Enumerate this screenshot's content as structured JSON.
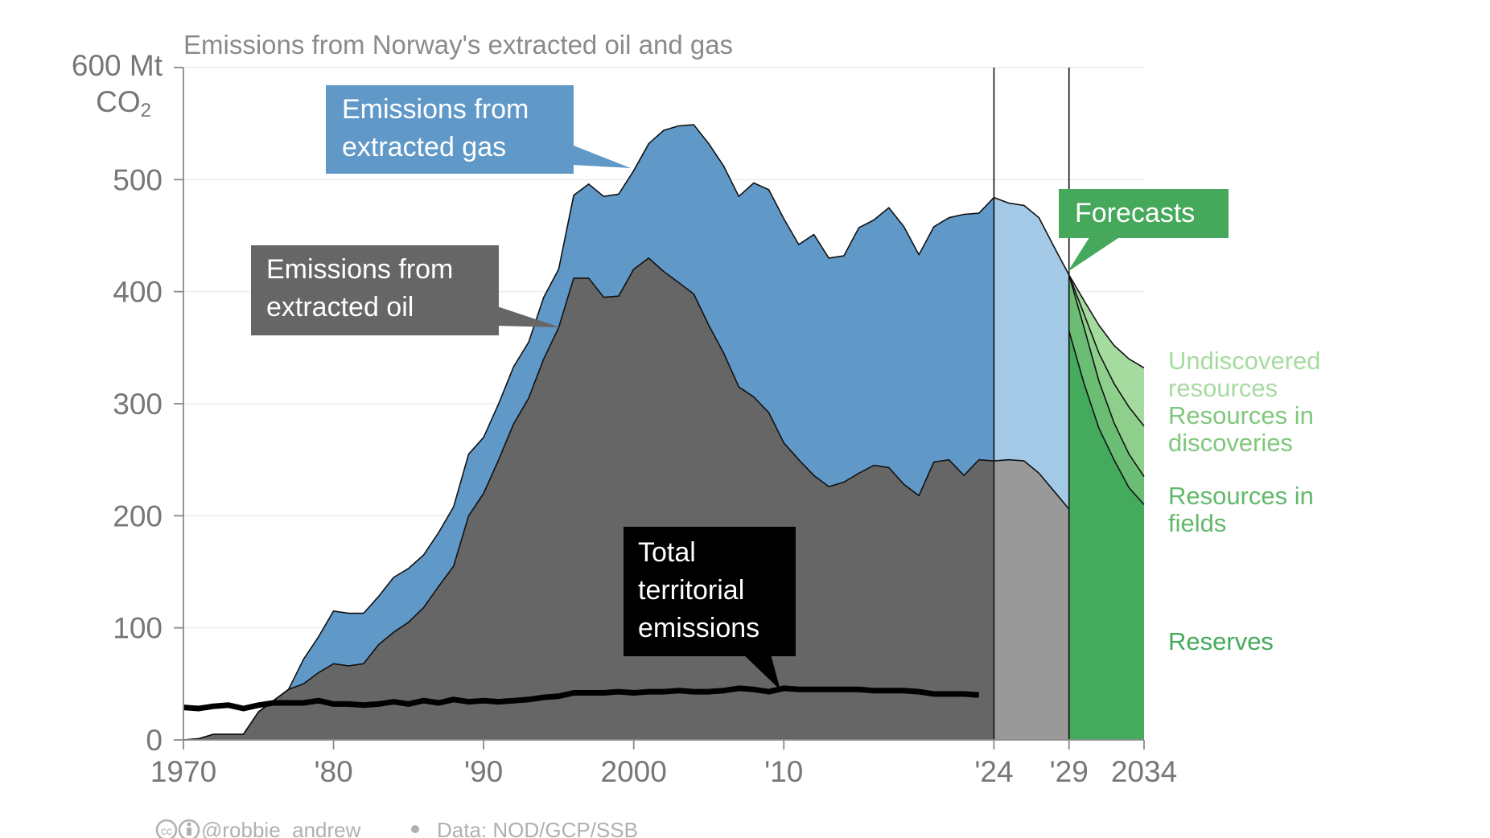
{
  "title": "Emissions from Norway's extracted oil and gas",
  "y_unit_top": "600 Mt",
  "y_unit_bottom": "CO",
  "y_unit_sub": "2",
  "callouts": {
    "gas": [
      "Emissions from",
      "extracted gas"
    ],
    "oil": [
      "Emissions from",
      "extracted oil"
    ],
    "territorial": [
      "Total",
      "territorial",
      "emissions"
    ],
    "forecasts": "Forecasts"
  },
  "side_labels": {
    "undiscovered": [
      "Undiscovered",
      "resources"
    ],
    "discoveries": [
      "Resources in",
      "discoveries"
    ],
    "fields": [
      "Resources in",
      "fields"
    ],
    "reserves": "Reserves"
  },
  "credit": "@robbie_andrew",
  "source": "Data: NOD/GCP/SSB",
  "colors": {
    "gas": "#6098c8",
    "oil": "#666666",
    "gas_forecast": "#a3c9e6",
    "oil_forecast": "#999999",
    "reserves": "#44aa5c",
    "fields": "#6cbd74",
    "discoveries": "#8ed08b",
    "undiscovered": "#a6dba0",
    "forecast_box": "#45a85b",
    "territorial": "#000000"
  },
  "chart_data": {
    "type": "area",
    "title": "Emissions from Norway's extracted oil and gas",
    "ylabel": "600 Mt CO2",
    "ylim": [
      0,
      600
    ],
    "xlim": [
      1970,
      2034
    ],
    "y_ticks": [
      0,
      100,
      200,
      300,
      400,
      500
    ],
    "x_ticks": [
      {
        "value": 1970,
        "label": "1970"
      },
      {
        "value": 1980,
        "label": "'80"
      },
      {
        "value": 1990,
        "label": "'90"
      },
      {
        "value": 2000,
        "label": "2000"
      },
      {
        "value": 2010,
        "label": "'10"
      },
      {
        "value": 2024,
        "label": "'24"
      },
      {
        "value": 2029,
        "label": "'29"
      },
      {
        "value": 2034,
        "label": "2034"
      }
    ],
    "grid": true,
    "historical": {
      "x": [
        1970,
        1971,
        1972,
        1973,
        1974,
        1975,
        1976,
        1977,
        1978,
        1979,
        1980,
        1981,
        1982,
        1983,
        1984,
        1985,
        1986,
        1987,
        1988,
        1989,
        1990,
        1991,
        1992,
        1993,
        1994,
        1995,
        1996,
        1997,
        1998,
        1999,
        2000,
        2001,
        2002,
        2003,
        2004,
        2005,
        2006,
        2007,
        2008,
        2009,
        2010,
        2011,
        2012,
        2013,
        2014,
        2015,
        2016,
        2017,
        2018,
        2019,
        2020,
        2021,
        2022,
        2023,
        2024
      ],
      "series": [
        {
          "name": "Emissions from extracted oil",
          "values": [
            0,
            1,
            5,
            5,
            5,
            25,
            35,
            45,
            50,
            60,
            68,
            66,
            68,
            85,
            96,
            105,
            118,
            137,
            155,
            200,
            220,
            250,
            282,
            305,
            340,
            368,
            412,
            412,
            395,
            396,
            420,
            430,
            418,
            408,
            398,
            370,
            345,
            315,
            306,
            292,
            265,
            250,
            236,
            226,
            230,
            238,
            245,
            243,
            228,
            218,
            248,
            250,
            236,
            250,
            249
          ]
        },
        {
          "name": "Emissions from extracted gas",
          "values": [
            0,
            1,
            5,
            5,
            5,
            25,
            35,
            45,
            72,
            92,
            115,
            113,
            113,
            128,
            145,
            153,
            165,
            185,
            208,
            255,
            270,
            300,
            333,
            355,
            395,
            420,
            486,
            496,
            485,
            487,
            508,
            532,
            544,
            548,
            549,
            532,
            512,
            485,
            497,
            491,
            465,
            442,
            451,
            430,
            432,
            457,
            464,
            475,
            458,
            433,
            458,
            466,
            469,
            470,
            484
          ]
        }
      ]
    },
    "forecast_fade": {
      "x": [
        2024,
        2025,
        2026,
        2027,
        2028,
        2029
      ],
      "oil": [
        249,
        250,
        249,
        238,
        222,
        206
      ],
      "gas": [
        484,
        479,
        477,
        466,
        440,
        415
      ]
    },
    "forecast": {
      "x": [
        2029,
        2030,
        2031,
        2032,
        2033,
        2034
      ],
      "series": [
        {
          "name": "Reserves",
          "values": [
            365,
            318,
            278,
            250,
            225,
            210
          ]
        },
        {
          "name": "Resources in fields",
          "values": [
            415,
            368,
            320,
            283,
            255,
            235
          ]
        },
        {
          "name": "Resources in discoveries",
          "values": [
            415,
            380,
            345,
            318,
            297,
            280
          ]
        },
        {
          "name": "Undiscovered resources",
          "values": [
            415,
            392,
            370,
            352,
            340,
            332
          ]
        }
      ]
    },
    "territorial_emissions": {
      "x": [
        1970,
        1971,
        1972,
        1973,
        1974,
        1975,
        1976,
        1977,
        1978,
        1979,
        1980,
        1981,
        1982,
        1983,
        1984,
        1985,
        1986,
        1987,
        1988,
        1989,
        1990,
        1991,
        1992,
        1993,
        1994,
        1995,
        1996,
        1997,
        1998,
        1999,
        2000,
        2001,
        2002,
        2003,
        2004,
        2005,
        2006,
        2007,
        2008,
        2009,
        2010,
        2011,
        2012,
        2013,
        2014,
        2015,
        2016,
        2017,
        2018,
        2019,
        2020,
        2021,
        2022,
        2023
      ],
      "values": [
        29,
        28,
        30,
        31,
        28,
        31,
        33,
        33,
        33,
        35,
        32,
        32,
        31,
        32,
        34,
        32,
        35,
        33,
        36,
        34,
        35,
        34,
        35,
        36,
        38,
        39,
        42,
        42,
        42,
        43,
        42,
        43,
        43,
        44,
        43,
        43,
        44,
        46,
        45,
        43,
        46,
        45,
        45,
        45,
        45,
        45,
        44,
        44,
        44,
        43,
        41,
        41,
        41,
        40
      ]
    },
    "markers": [
      {
        "x": 2024,
        "label": "'24"
      },
      {
        "x": 2029,
        "label": "'29"
      }
    ]
  }
}
